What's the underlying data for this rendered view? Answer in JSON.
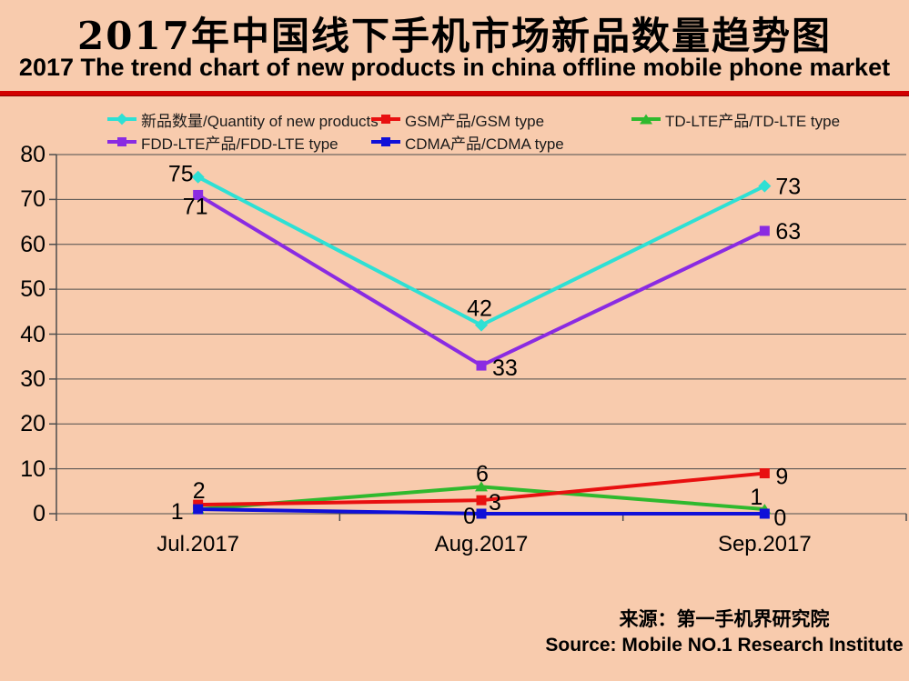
{
  "page": {
    "background": "#F8CBAD"
  },
  "header": {
    "title_zh": "2017年中国线下手机市场新品数量趋势图",
    "title_en": "2017 The trend chart of new products in china offline mobile phone market",
    "rule_color": "#D10000"
  },
  "source": {
    "line_zh": "来源：第一手机界研究院",
    "line_en": "Source: Mobile NO.1 Research Institute"
  },
  "chart_data": {
    "type": "line",
    "title": "2017年中国线下手机市场新品数量趋势图",
    "subtitle": "2017 The trend chart of new products in china offline mobile phone market",
    "categories": [
      "Jul.2017",
      "Aug.2017",
      "Sep.2017"
    ],
    "series": [
      {
        "name": "新品数量/Quantity of new products",
        "values": [
          75,
          42,
          73
        ],
        "labels": [
          "75",
          "42",
          "73"
        ],
        "color": "#2EE0D4",
        "marker": "diamond"
      },
      {
        "name": "GSM产品/GSM type",
        "values": [
          2,
          3,
          9
        ],
        "labels": [
          "2",
          "3",
          "9"
        ],
        "color": "#E81010",
        "marker": "square"
      },
      {
        "name": "TD-LTE产品/TD-LTE type",
        "values": [
          1,
          6,
          1
        ],
        "labels": [
          "",
          "6",
          "1"
        ],
        "color": "#2FB92E",
        "marker": "triangle"
      },
      {
        "name": "FDD-LTE产品/FDD-LTE type",
        "values": [
          71,
          33,
          63
        ],
        "labels": [
          "71",
          "33",
          "63"
        ],
        "color": "#8A2BE2",
        "marker": "square"
      },
      {
        "name": "CDMA产品/CDMA type",
        "values": [
          1,
          0,
          0
        ],
        "labels": [
          "1",
          "0",
          "0"
        ],
        "color": "#1010D8",
        "marker": "square"
      }
    ],
    "xlabel": "",
    "ylabel": "",
    "ylim": [
      0,
      80
    ],
    "yticks": [
      "0",
      "10",
      "20",
      "30",
      "40",
      "50",
      "60",
      "70",
      "80"
    ],
    "grid": true,
    "gridline_color": "#4D4D4D",
    "axis_color": "#4D4D4D",
    "legend_position": "top"
  }
}
